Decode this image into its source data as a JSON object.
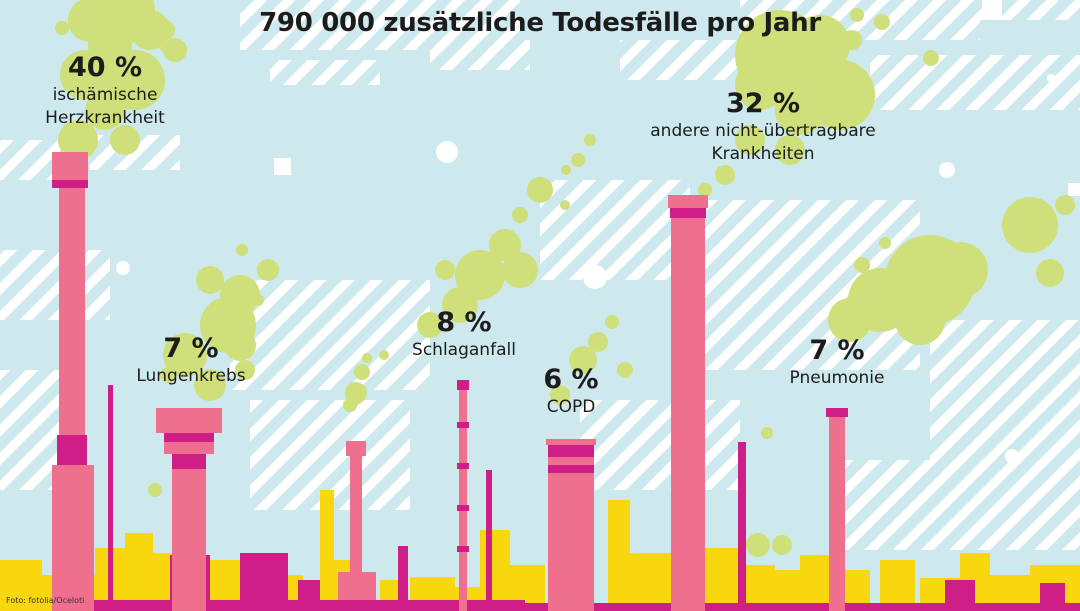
{
  "chart_data": {
    "type": "pie",
    "title": "790 000 zusätzliche Todesfälle pro Jahr",
    "unit": "%",
    "categories": [
      "ischämische Herzkrankheit",
      "Lungenkrebs",
      "Schlaganfall",
      "COPD",
      "andere nicht-übertragbare Krankheiten",
      "Pneumonie"
    ],
    "values": [
      40,
      7,
      8,
      6,
      32,
      7
    ],
    "labels": [
      {
        "pct": "40 %",
        "lines": [
          "ischämische",
          "Herzkrankheit"
        ]
      },
      {
        "pct": "7 %",
        "lines": [
          "Lungenkrebs"
        ]
      },
      {
        "pct": "8 %",
        "lines": [
          "Schlaganfall"
        ]
      },
      {
        "pct": "6 %",
        "lines": [
          "COPD"
        ]
      },
      {
        "pct": "32 %",
        "lines": [
          "andere nicht-übertragbare",
          "Krankheiten"
        ]
      },
      {
        "pct": "7 %",
        "lines": [
          "Pneumonie"
        ]
      }
    ]
  },
  "credit": "Foto: fotolia/Oceloti",
  "colors": {
    "sky": "#cde9ee",
    "stripes": "#ffffff",
    "smoke": "#cfdf7a",
    "chimney": "#ee6f8e",
    "band": "#cf1e86",
    "magenta": "#cf1e86",
    "yellow": "#f8d70f"
  }
}
